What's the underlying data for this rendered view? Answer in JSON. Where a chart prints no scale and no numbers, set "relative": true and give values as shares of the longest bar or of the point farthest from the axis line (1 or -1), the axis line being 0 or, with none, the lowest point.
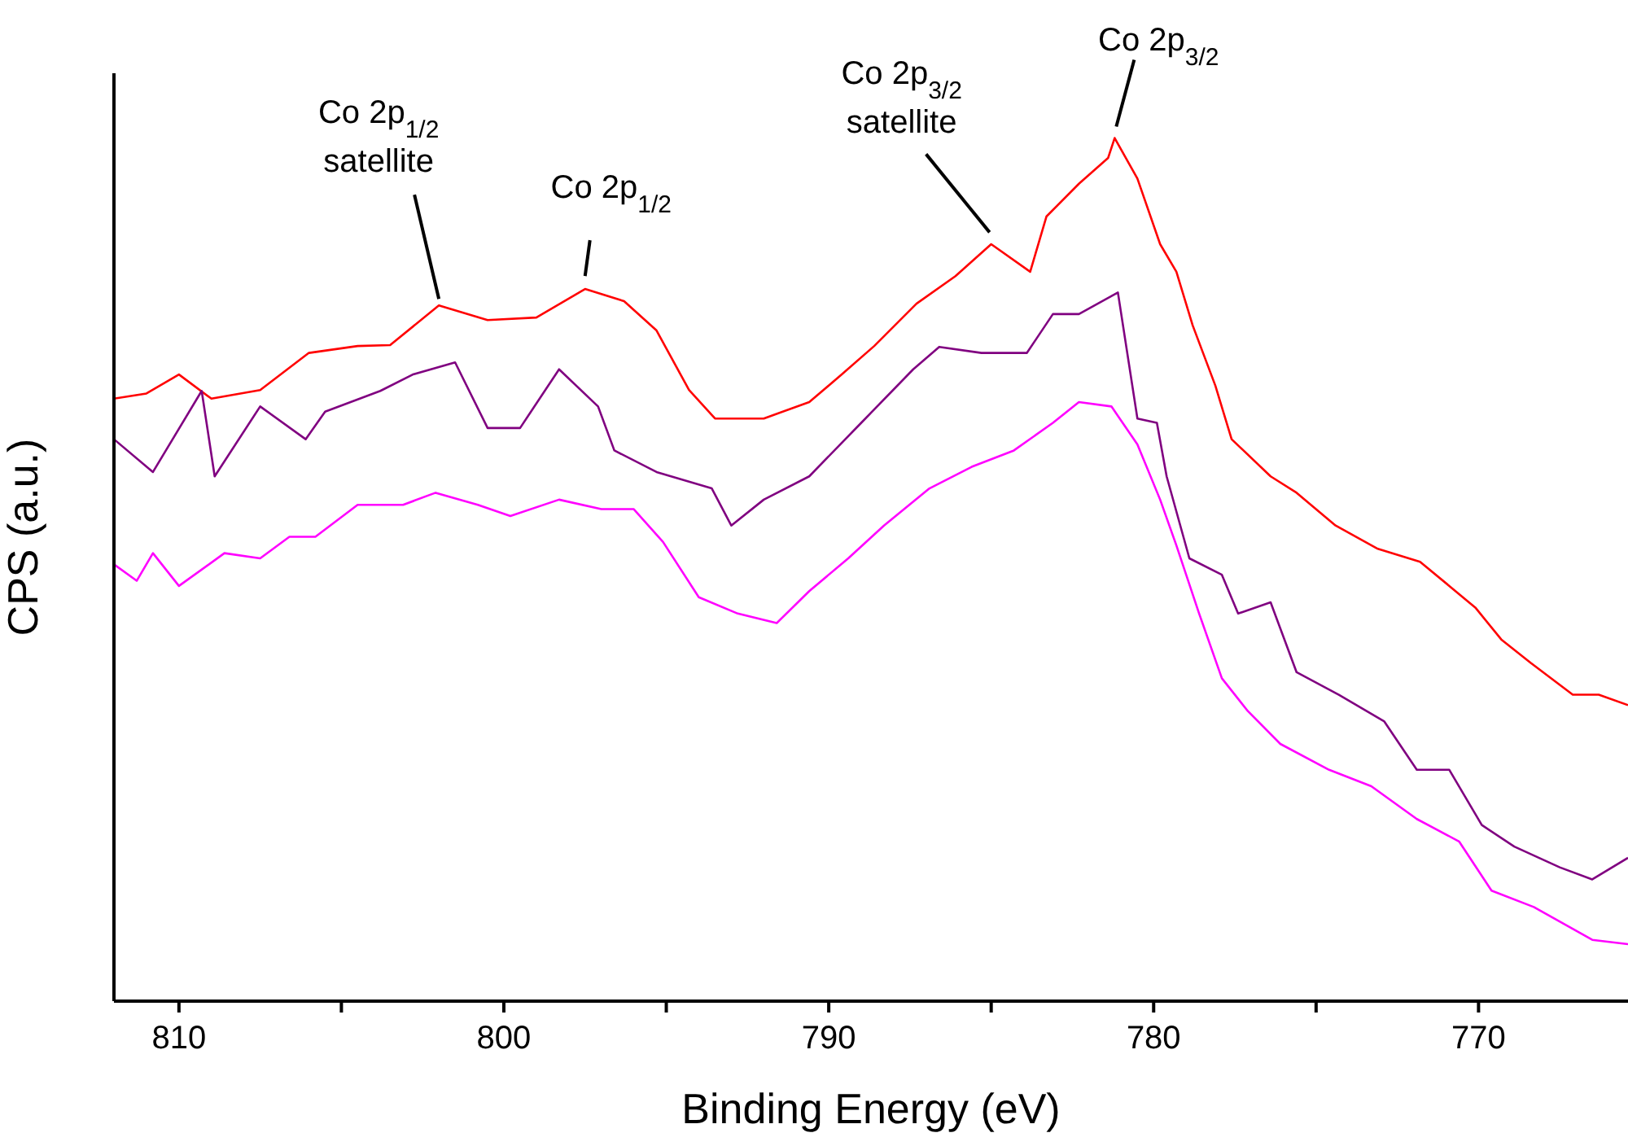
{
  "chart_data": {
    "type": "line",
    "relative": true,
    "xlabel": "Binding Energy (eV)",
    "ylabel": "CPS (a.u.)",
    "xlim": [
      812,
      765.4
    ],
    "xticks": [
      810,
      {
        "value": 805,
        "label": null
      },
      800,
      {
        "value": 795,
        "label": null
      },
      790,
      {
        "value": 785,
        "label": null
      },
      780,
      {
        "value": 775,
        "label": null
      },
      770
    ],
    "marker": "none",
    "line_style": "solid",
    "series": [
      {
        "color": "#ff0000",
        "x": [
          812.0,
          811.0,
          810.0,
          809.0,
          807.5,
          806.0,
          804.5,
          803.5,
          802.0,
          800.5,
          799.0,
          797.5,
          796.3,
          795.3,
          794.3,
          793.5,
          792.0,
          790.6,
          789.6,
          788.6,
          787.3,
          786.1,
          785.0,
          783.8,
          783.3,
          782.3,
          781.4,
          781.2,
          780.5,
          779.8,
          779.3,
          778.8,
          778.1,
          777.6,
          776.4,
          775.6,
          774.4,
          773.1,
          771.8,
          770.9,
          770.1,
          769.3,
          768.4,
          767.1,
          766.3,
          765.4
        ],
        "values": [
          0.698,
          0.704,
          0.726,
          0.698,
          0.708,
          0.751,
          0.759,
          0.76,
          0.806,
          0.789,
          0.792,
          0.825,
          0.811,
          0.777,
          0.708,
          0.675,
          0.675,
          0.694,
          0.726,
          0.759,
          0.808,
          0.84,
          0.877,
          0.845,
          0.909,
          0.947,
          0.977,
          1.0,
          0.953,
          0.877,
          0.845,
          0.783,
          0.713,
          0.651,
          0.608,
          0.589,
          0.551,
          0.524,
          0.509,
          0.481,
          0.456,
          0.419,
          0.392,
          0.355,
          0.355,
          0.343
        ]
      },
      {
        "color": "#800080",
        "x": [
          812.0,
          810.8,
          809.3,
          808.9,
          807.5,
          806.1,
          805.5,
          803.8,
          802.8,
          801.5,
          800.5,
          799.5,
          798.3,
          797.1,
          796.6,
          795.3,
          793.6,
          793.0,
          792.0,
          790.6,
          789.0,
          787.4,
          786.6,
          785.3,
          783.9,
          783.1,
          782.3,
          781.1,
          780.5,
          779.9,
          779.6,
          778.9,
          777.9,
          777.4,
          776.4,
          775.6,
          774.3,
          772.9,
          771.9,
          770.9,
          769.9,
          768.9,
          767.5,
          766.5,
          765.4
        ],
        "values": [
          0.651,
          0.613,
          0.707,
          0.608,
          0.689,
          0.651,
          0.683,
          0.707,
          0.726,
          0.74,
          0.664,
          0.664,
          0.732,
          0.689,
          0.638,
          0.613,
          0.594,
          0.551,
          0.581,
          0.608,
          0.67,
          0.732,
          0.758,
          0.751,
          0.751,
          0.796,
          0.796,
          0.821,
          0.675,
          0.67,
          0.608,
          0.513,
          0.494,
          0.449,
          0.462,
          0.381,
          0.355,
          0.324,
          0.268,
          0.268,
          0.204,
          0.179,
          0.155,
          0.141,
          0.166
        ]
      },
      {
        "color": "#ff00ff",
        "x": [
          812.0,
          811.3,
          810.8,
          810.0,
          808.6,
          807.5,
          806.6,
          805.8,
          804.5,
          803.1,
          802.1,
          800.8,
          799.8,
          798.3,
          797.0,
          796.0,
          795.1,
          794.0,
          792.8,
          791.6,
          790.6,
          789.4,
          788.3,
          786.9,
          785.6,
          784.3,
          783.1,
          782.3,
          781.3,
          780.5,
          779.8,
          779.3,
          778.6,
          777.9,
          777.1,
          776.1,
          774.6,
          773.3,
          771.9,
          770.6,
          769.6,
          768.3,
          766.5,
          765.4
        ],
        "values": [
          0.506,
          0.487,
          0.519,
          0.481,
          0.519,
          0.513,
          0.538,
          0.538,
          0.575,
          0.575,
          0.589,
          0.575,
          0.562,
          0.581,
          0.57,
          0.57,
          0.532,
          0.468,
          0.449,
          0.438,
          0.475,
          0.513,
          0.551,
          0.594,
          0.619,
          0.638,
          0.67,
          0.694,
          0.689,
          0.645,
          0.581,
          0.528,
          0.449,
          0.374,
          0.336,
          0.298,
          0.268,
          0.249,
          0.211,
          0.185,
          0.128,
          0.109,
          0.071,
          0.066
        ]
      }
    ],
    "annotations": [
      {
        "text": "Co 2p$_{1/2}$ satellite",
        "x": 802.0,
        "y": 0.806
      },
      {
        "text": "Co 2p$_{1/2}$",
        "x": 797.5,
        "y": 0.825
      },
      {
        "text": "Co 2p$_{3/2}$ satellite",
        "x": 785.0,
        "y": 0.887
      },
      {
        "text": "Co 2p$_{3/2}$",
        "x": 781.2,
        "y": 1.0
      }
    ]
  }
}
